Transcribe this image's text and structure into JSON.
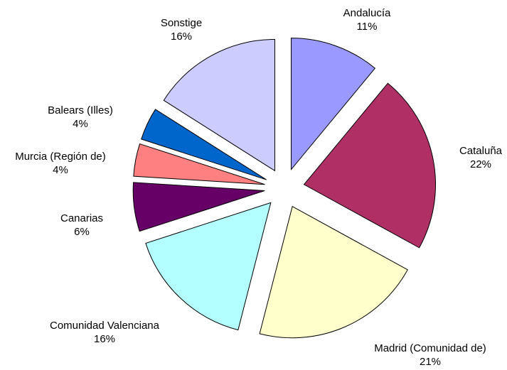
{
  "chart_data": {
    "type": "pie",
    "categories": [
      "Andalucía",
      "Cataluña",
      "Madrid (Comunidad de)",
      "Comunidad Valenciana",
      "Canarias",
      "Murcia (Región de)",
      "Balears (Illes)",
      "Sonstige"
    ],
    "values": [
      11,
      22,
      21,
      16,
      6,
      4,
      4,
      16
    ],
    "value_labels": [
      "11%",
      "22%",
      "21%",
      "16%",
      "6%",
      "4%",
      "4%",
      "16%"
    ],
    "colors": [
      "#9999ff",
      "#b03066",
      "#ffffcc",
      "#b3ffff",
      "#660066",
      "#ff8080",
      "#0066cc",
      "#ccccff"
    ],
    "exploded": true
  }
}
